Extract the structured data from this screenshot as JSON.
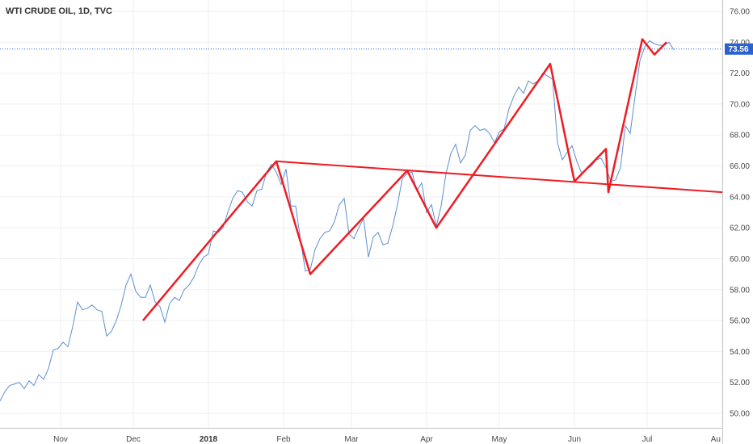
{
  "title": "WTI CRUDE OIL, 1D, TVC",
  "chart_data": {
    "type": "line",
    "ylim": [
      49.5,
      76.5
    ],
    "yticks": [
      "76.00",
      "74.00",
      "72.00",
      "70.00",
      "68.00",
      "66.00",
      "64.00",
      "62.00",
      "60.00",
      "58.00",
      "56.00",
      "54.00",
      "52.00",
      "50.00"
    ],
    "ytick_values": [
      76,
      74,
      72,
      70,
      68,
      66,
      64,
      62,
      60,
      58,
      56,
      54,
      52,
      50
    ],
    "x_range": [
      "2017-10-07",
      "2018-08-01"
    ],
    "xticks": [
      {
        "label": "Nov",
        "date": "2017-11-01",
        "bold": false
      },
      {
        "label": "Dec",
        "date": "2017-12-01",
        "bold": false
      },
      {
        "label": "2018",
        "date": "2018-01-01",
        "bold": true
      },
      {
        "label": "Feb",
        "date": "2018-02-01",
        "bold": false
      },
      {
        "label": "Mar",
        "date": "2018-03-01",
        "bold": false
      },
      {
        "label": "Apr",
        "date": "2018-04-01",
        "bold": false
      },
      {
        "label": "May",
        "date": "2018-05-01",
        "bold": false
      },
      {
        "label": "Jun",
        "date": "2018-06-01",
        "bold": false
      },
      {
        "label": "Jul",
        "date": "2018-07-01",
        "bold": false
      },
      {
        "label": "Au",
        "date": "2018-08-01",
        "bold": false
      }
    ],
    "current_price": 73.56,
    "current_price_label": "73.56",
    "series": [
      {
        "name": "WTI CRUDE OIL",
        "color": "#5b8fd1",
        "points": [
          [
            "2017-10-07",
            50.8
          ],
          [
            "2017-10-09",
            51.4
          ],
          [
            "2017-10-11",
            51.8
          ],
          [
            "2017-10-13",
            51.9
          ],
          [
            "2017-10-15",
            52.0
          ],
          [
            "2017-10-17",
            51.6
          ],
          [
            "2017-10-19",
            52.1
          ],
          [
            "2017-10-21",
            51.8
          ],
          [
            "2017-10-23",
            52.5
          ],
          [
            "2017-10-25",
            52.2
          ],
          [
            "2017-10-27",
            52.9
          ],
          [
            "2017-10-29",
            54.1
          ],
          [
            "2017-10-31",
            54.2
          ],
          [
            "2017-11-02",
            54.6
          ],
          [
            "2017-11-04",
            54.3
          ],
          [
            "2017-11-06",
            55.6
          ],
          [
            "2017-11-08",
            57.2
          ],
          [
            "2017-11-10",
            56.7
          ],
          [
            "2017-11-12",
            56.8
          ],
          [
            "2017-11-14",
            57.0
          ],
          [
            "2017-11-16",
            56.7
          ],
          [
            "2017-11-18",
            56.6
          ],
          [
            "2017-11-20",
            55.0
          ],
          [
            "2017-11-22",
            55.3
          ],
          [
            "2017-11-24",
            56.0
          ],
          [
            "2017-11-26",
            57.0
          ],
          [
            "2017-11-28",
            58.3
          ],
          [
            "2017-11-30",
            59.0
          ],
          [
            "2017-12-02",
            57.9
          ],
          [
            "2017-12-04",
            57.5
          ],
          [
            "2017-12-06",
            57.5
          ],
          [
            "2017-12-08",
            58.3
          ],
          [
            "2017-12-10",
            57.2
          ],
          [
            "2017-12-12",
            56.9
          ],
          [
            "2017-12-14",
            55.9
          ],
          [
            "2017-12-16",
            57.1
          ],
          [
            "2017-12-18",
            57.5
          ],
          [
            "2017-12-20",
            57.3
          ],
          [
            "2017-12-22",
            58.0
          ],
          [
            "2017-12-24",
            58.3
          ],
          [
            "2017-12-26",
            58.8
          ],
          [
            "2017-12-28",
            59.6
          ],
          [
            "2017-12-30",
            60.1
          ],
          [
            "2018-01-01",
            60.3
          ],
          [
            "2018-01-03",
            61.8
          ],
          [
            "2018-01-05",
            61.7
          ],
          [
            "2018-01-07",
            62.0
          ],
          [
            "2018-01-09",
            63.0
          ],
          [
            "2018-01-11",
            63.9
          ],
          [
            "2018-01-13",
            64.4
          ],
          [
            "2018-01-15",
            64.3
          ],
          [
            "2018-01-17",
            63.7
          ],
          [
            "2018-01-19",
            63.4
          ],
          [
            "2018-01-21",
            64.4
          ],
          [
            "2018-01-23",
            64.5
          ],
          [
            "2018-01-25",
            65.6
          ],
          [
            "2018-01-27",
            66.1
          ],
          [
            "2018-01-29",
            65.6
          ],
          [
            "2018-01-31",
            64.8
          ],
          [
            "2018-02-02",
            65.8
          ],
          [
            "2018-02-04",
            63.4
          ],
          [
            "2018-02-06",
            63.4
          ],
          [
            "2018-02-08",
            61.2
          ],
          [
            "2018-02-10",
            59.2
          ],
          [
            "2018-02-12",
            59.3
          ],
          [
            "2018-02-14",
            60.6
          ],
          [
            "2018-02-16",
            61.3
          ],
          [
            "2018-02-18",
            61.7
          ],
          [
            "2018-02-20",
            61.8
          ],
          [
            "2018-02-22",
            62.4
          ],
          [
            "2018-02-24",
            63.5
          ],
          [
            "2018-02-26",
            63.9
          ],
          [
            "2018-02-28",
            61.6
          ],
          [
            "2018-03-02",
            61.3
          ],
          [
            "2018-03-04",
            62.0
          ],
          [
            "2018-03-06",
            62.6
          ],
          [
            "2018-03-08",
            60.1
          ],
          [
            "2018-03-10",
            61.4
          ],
          [
            "2018-03-12",
            61.7
          ],
          [
            "2018-03-14",
            60.9
          ],
          [
            "2018-03-16",
            61.0
          ],
          [
            "2018-03-18",
            62.1
          ],
          [
            "2018-03-20",
            63.5
          ],
          [
            "2018-03-22",
            65.2
          ],
          [
            "2018-03-24",
            65.5
          ],
          [
            "2018-03-26",
            65.6
          ],
          [
            "2018-03-28",
            64.4
          ],
          [
            "2018-03-30",
            64.9
          ],
          [
            "2018-04-01",
            63.0
          ],
          [
            "2018-04-03",
            63.5
          ],
          [
            "2018-04-05",
            62.1
          ],
          [
            "2018-04-07",
            63.4
          ],
          [
            "2018-04-09",
            65.5
          ],
          [
            "2018-04-11",
            66.8
          ],
          [
            "2018-04-13",
            67.4
          ],
          [
            "2018-04-15",
            66.2
          ],
          [
            "2018-04-17",
            66.7
          ],
          [
            "2018-04-19",
            68.3
          ],
          [
            "2018-04-21",
            68.6
          ],
          [
            "2018-04-23",
            68.3
          ],
          [
            "2018-04-25",
            68.4
          ],
          [
            "2018-04-27",
            68.1
          ],
          [
            "2018-04-29",
            67.5
          ],
          [
            "2018-05-01",
            68.2
          ],
          [
            "2018-05-03",
            68.4
          ],
          [
            "2018-05-05",
            69.7
          ],
          [
            "2018-05-07",
            70.5
          ],
          [
            "2018-05-09",
            71.1
          ],
          [
            "2018-05-11",
            70.7
          ],
          [
            "2018-05-13",
            71.5
          ],
          [
            "2018-05-15",
            71.3
          ],
          [
            "2018-05-17",
            71.5
          ],
          [
            "2018-05-19",
            72.0
          ],
          [
            "2018-05-21",
            71.8
          ],
          [
            "2018-05-23",
            71.6
          ],
          [
            "2018-05-25",
            67.5
          ],
          [
            "2018-05-27",
            66.4
          ],
          [
            "2018-05-29",
            66.9
          ],
          [
            "2018-05-31",
            67.3
          ],
          [
            "2018-06-02",
            66.3
          ],
          [
            "2018-06-04",
            65.5
          ],
          [
            "2018-06-06",
            65.8
          ],
          [
            "2018-06-08",
            66.0
          ],
          [
            "2018-06-10",
            66.4
          ],
          [
            "2018-06-12",
            66.5
          ],
          [
            "2018-06-14",
            65.9
          ],
          [
            "2018-06-16",
            65.0
          ],
          [
            "2018-06-18",
            65.1
          ],
          [
            "2018-06-20",
            65.9
          ],
          [
            "2018-06-22",
            68.6
          ],
          [
            "2018-06-24",
            68.1
          ],
          [
            "2018-06-26",
            70.5
          ],
          [
            "2018-06-28",
            72.8
          ],
          [
            "2018-06-30",
            73.7
          ],
          [
            "2018-07-02",
            74.1
          ],
          [
            "2018-07-04",
            73.9
          ],
          [
            "2018-07-06",
            73.8
          ],
          [
            "2018-07-08",
            73.8
          ],
          [
            "2018-07-10",
            74.0
          ],
          [
            "2018-07-12",
            73.5
          ]
        ]
      }
    ],
    "annotations": {
      "color": "#ee1c24",
      "zigzag": [
        [
          "2017-12-05",
          56.0
        ],
        [
          "2018-01-29",
          66.3
        ],
        [
          "2018-02-12",
          59.0
        ],
        [
          "2018-03-24",
          65.7
        ],
        [
          "2018-04-05",
          62.0
        ],
        [
          "2018-05-22",
          72.6
        ],
        [
          "2018-06-01",
          65.0
        ],
        [
          "2018-06-14",
          67.1
        ],
        [
          "2018-06-15",
          64.3
        ],
        [
          "2018-06-29",
          74.2
        ],
        [
          "2018-07-04",
          73.2
        ],
        [
          "2018-07-09",
          74.0
        ]
      ],
      "neckline": [
        [
          "2018-01-29",
          66.3
        ],
        [
          "2018-08-01",
          64.3
        ]
      ]
    }
  }
}
